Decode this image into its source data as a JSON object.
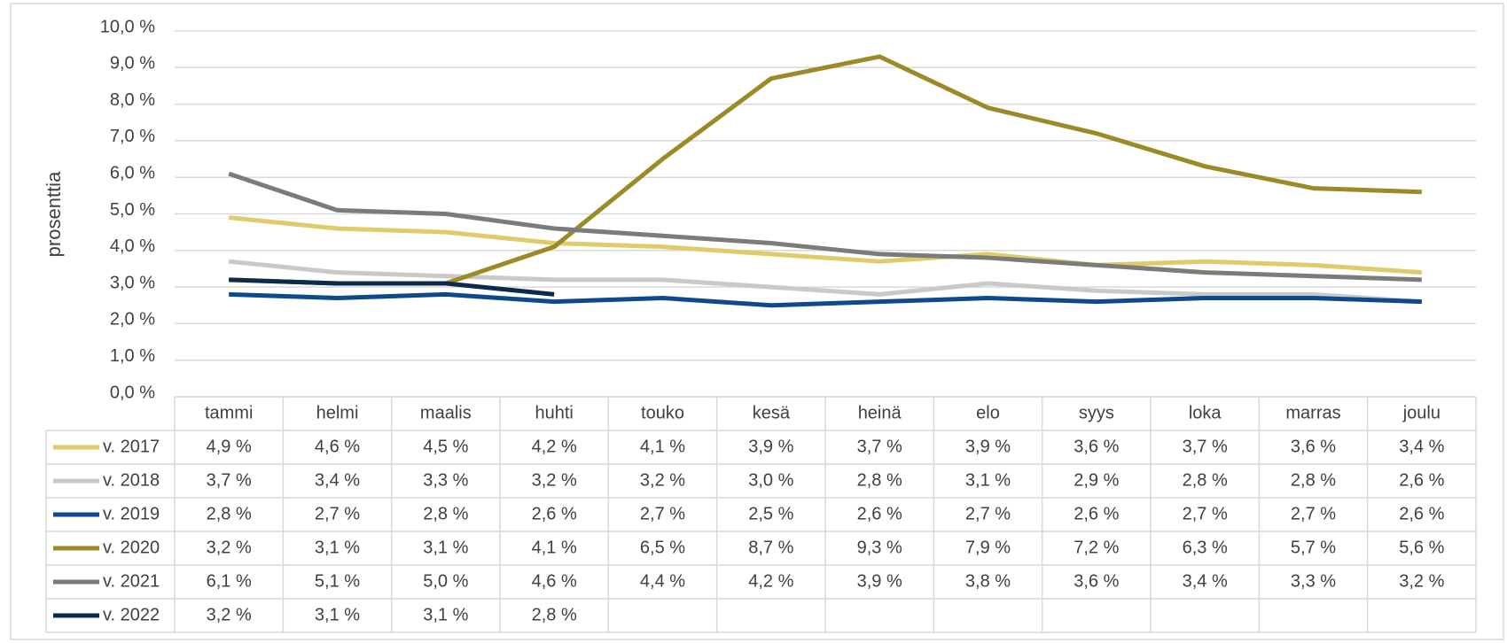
{
  "chart_data": {
    "type": "line",
    "y_label": "prosenttia",
    "categories": [
      "tammi",
      "helmi",
      "maalis",
      "huhti",
      "touko",
      "kesä",
      "heinä",
      "elo",
      "syys",
      "loka",
      "marras",
      "joulu"
    ],
    "ylim": [
      0,
      10
    ],
    "yticks": [
      {
        "value": 0,
        "label": "0,0 %"
      },
      {
        "value": 1,
        "label": "1,0 %"
      },
      {
        "value": 2,
        "label": "2,0 %"
      },
      {
        "value": 3,
        "label": "3,0 %"
      },
      {
        "value": 4,
        "label": "4,0 %"
      },
      {
        "value": 5,
        "label": "5,0 %"
      },
      {
        "value": 6,
        "label": "6,0 %"
      },
      {
        "value": 7,
        "label": "7,0 %"
      },
      {
        "value": 8,
        "label": "8,0 %"
      },
      {
        "value": 9,
        "label": "9,0 %"
      },
      {
        "value": 10,
        "label": "10,0 %"
      }
    ],
    "grid": true,
    "series": [
      {
        "name": "v. 2017",
        "color": "#dfcb6a",
        "values": [
          4.9,
          4.6,
          4.5,
          4.2,
          4.1,
          3.9,
          3.7,
          3.9,
          3.6,
          3.7,
          3.6,
          3.4
        ],
        "value_labels": [
          "4,9 %",
          "4,6 %",
          "4,5 %",
          "4,2 %",
          "4,1 %",
          "3,9 %",
          "3,7 %",
          "3,9 %",
          "3,6 %",
          "3,7 %",
          "3,6 %",
          "3,4 %"
        ]
      },
      {
        "name": "v. 2018",
        "color": "#c9c9c9",
        "values": [
          3.7,
          3.4,
          3.3,
          3.2,
          3.2,
          3.0,
          2.8,
          3.1,
          2.9,
          2.8,
          2.8,
          2.6
        ],
        "value_labels": [
          "3,7 %",
          "3,4 %",
          "3,3 %",
          "3,2 %",
          "3,2 %",
          "3,0 %",
          "2,8 %",
          "3,1 %",
          "2,9 %",
          "2,8 %",
          "2,8 %",
          "2,6 %"
        ]
      },
      {
        "name": "v. 2019",
        "color": "#0d4a8c",
        "values": [
          2.8,
          2.7,
          2.8,
          2.6,
          2.7,
          2.5,
          2.6,
          2.7,
          2.6,
          2.7,
          2.7,
          2.6
        ],
        "value_labels": [
          "2,8 %",
          "2,7 %",
          "2,8 %",
          "2,6 %",
          "2,7 %",
          "2,5 %",
          "2,6 %",
          "2,7 %",
          "2,6 %",
          "2,7 %",
          "2,7 %",
          "2,6 %"
        ]
      },
      {
        "name": "v. 2020",
        "color": "#9b8b27",
        "values": [
          3.2,
          3.1,
          3.1,
          4.1,
          6.5,
          8.7,
          9.3,
          7.9,
          7.2,
          6.3,
          5.7,
          5.6
        ],
        "value_labels": [
          "3,2 %",
          "3,1 %",
          "3,1 %",
          "4,1 %",
          "6,5 %",
          "8,7 %",
          "9,3 %",
          "7,9 %",
          "7,2 %",
          "6,3 %",
          "5,7 %",
          "5,6 %"
        ]
      },
      {
        "name": "v. 2021",
        "color": "#7b7b7b",
        "values": [
          6.1,
          5.1,
          5.0,
          4.6,
          4.4,
          4.2,
          3.9,
          3.8,
          3.6,
          3.4,
          3.3,
          3.2
        ],
        "value_labels": [
          "6,1 %",
          "5,1 %",
          "5,0 %",
          "4,6 %",
          "4,4 %",
          "4,2 %",
          "3,9 %",
          "3,8 %",
          "3,6 %",
          "3,4 %",
          "3,3 %",
          "3,2 %"
        ]
      },
      {
        "name": "v. 2022",
        "color": "#0b2a4c",
        "values": [
          3.2,
          3.1,
          3.1,
          2.8,
          null,
          null,
          null,
          null,
          null,
          null,
          null,
          null
        ],
        "value_labels": [
          "3,2 %",
          "3,1 %",
          "3,1 %",
          "2,8 %",
          null,
          null,
          null,
          null,
          null,
          null,
          null,
          null
        ]
      }
    ]
  }
}
